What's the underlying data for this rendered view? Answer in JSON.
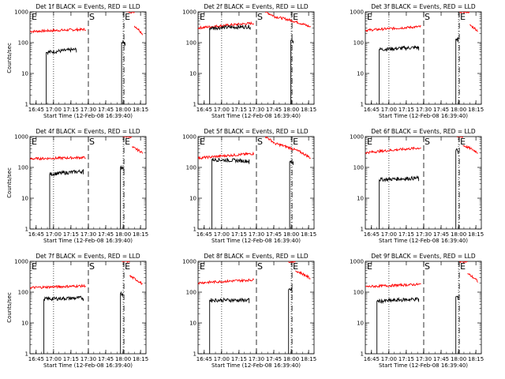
{
  "chart_data": {
    "type": "line",
    "layout": "3x3 grid",
    "y_scale": "log",
    "ylim": [
      1,
      1000
    ],
    "y_ticks": [
      1,
      10,
      100,
      1000
    ],
    "y_tick_labels": [
      "1",
      "10",
      "100",
      "1000"
    ],
    "ylabel": "Counts/sec",
    "xlabel": "Start Time (12-Feb-08 16:39:40)",
    "x_units": "minutes after start",
    "x_ticks": [
      5.33,
      20.33,
      35.33,
      50.33,
      65.33,
      80.33,
      95.33
    ],
    "x_tick_labels": [
      "16:45",
      "17:00",
      "17:15",
      "17:30",
      "17:45",
      "18:00",
      "18:15"
    ],
    "markers": {
      "E1": "E",
      "S": "S",
      "E2": "E"
    },
    "vlines": {
      "dotted": [
        20.33,
        80.33
      ],
      "dashed": 50.33,
      "dashdot": 80.33
    },
    "series": [
      {
        "name": "BLACK = Events",
        "color": "#000000"
      },
      {
        "name": "RED = LLD",
        "color": "#ff0000"
      }
    ],
    "panels": [
      {
        "title": "Det 1f BLACK = Events, RED = LLD",
        "show_ylabel": true,
        "events_on": [
          [
            14,
            40,
            48,
            60
          ],
          [
            79,
            82,
            100,
            100
          ]
        ],
        "lld_on": [
          [
            0,
            48,
            230,
            270
          ],
          [
            83,
            90,
            1000,
            1000
          ],
          [
            90,
            97,
            350,
            190
          ]
        ]
      },
      {
        "title": "Det 2f BLACK = Events, RED = LLD",
        "show_ylabel": false,
        "events_on": [
          [
            10,
            45,
            300,
            330
          ],
          [
            80,
            82,
            120,
            120
          ]
        ],
        "lld_on": [
          [
            0,
            48,
            300,
            430
          ],
          [
            58,
            66,
            1000,
            700
          ],
          [
            66,
            97,
            700,
            320
          ]
        ]
      },
      {
        "title": "Det 3f BLACK = Events, RED = LLD",
        "show_ylabel": false,
        "events_on": [
          [
            12,
            46,
            60,
            70
          ],
          [
            78,
            80,
            130,
            130
          ]
        ],
        "lld_on": [
          [
            0,
            48,
            250,
            330
          ],
          [
            81,
            90,
            1000,
            1000
          ],
          [
            90,
            97,
            370,
            240
          ]
        ]
      },
      {
        "title": "Det 4f BLACK = Events, RED = LLD",
        "show_ylabel": true,
        "events_on": [
          [
            17,
            46,
            60,
            75
          ],
          [
            78,
            81,
            100,
            100
          ]
        ],
        "lld_on": [
          [
            0,
            48,
            190,
            210
          ],
          [
            80,
            88,
            1000,
            1000
          ],
          [
            88,
            97,
            450,
            300
          ]
        ]
      },
      {
        "title": "Det 5f BLACK = Events, RED = LLD",
        "show_ylabel": false,
        "events_on": [
          [
            12,
            44,
            180,
            160
          ],
          [
            79,
            82,
            150,
            150
          ]
        ],
        "lld_on": [
          [
            0,
            48,
            200,
            280
          ],
          [
            58,
            66,
            1000,
            600
          ],
          [
            66,
            97,
            600,
            200
          ]
        ]
      },
      {
        "title": "Det 6f BLACK = Events, RED = LLD",
        "show_ylabel": false,
        "events_on": [
          [
            12,
            46,
            40,
            45
          ],
          [
            78,
            80,
            350,
            350
          ]
        ],
        "lld_on": [
          [
            0,
            48,
            300,
            430
          ],
          [
            79,
            84,
            1000,
            1000
          ],
          [
            84,
            97,
            520,
            300
          ]
        ]
      },
      {
        "title": "Det 7f BLACK = Events, RED = LLD",
        "show_ylabel": true,
        "events_on": [
          [
            12,
            46,
            60,
            65
          ],
          [
            78,
            80,
            90,
            90
          ]
        ],
        "lld_on": [
          [
            0,
            48,
            140,
            160
          ],
          [
            79,
            86,
            1000,
            1000
          ],
          [
            86,
            97,
            330,
            180
          ]
        ]
      },
      {
        "title": "Det 8f BLACK = Events, RED = LLD",
        "show_ylabel": false,
        "events_on": [
          [
            10,
            44,
            55,
            55
          ],
          [
            78,
            81,
            120,
            120
          ]
        ],
        "lld_on": [
          [
            0,
            48,
            200,
            250
          ],
          [
            78,
            84,
            1000,
            1000
          ],
          [
            84,
            97,
            500,
            270
          ]
        ]
      },
      {
        "title": "Det 9f BLACK = Events, RED = LLD",
        "show_ylabel": false,
        "events_on": [
          [
            10,
            46,
            50,
            60
          ],
          [
            78,
            80,
            70,
            70
          ]
        ],
        "lld_on": [
          [
            0,
            48,
            150,
            180
          ],
          [
            81,
            88,
            1000,
            1000
          ],
          [
            88,
            97,
            400,
            220
          ]
        ]
      }
    ]
  }
}
